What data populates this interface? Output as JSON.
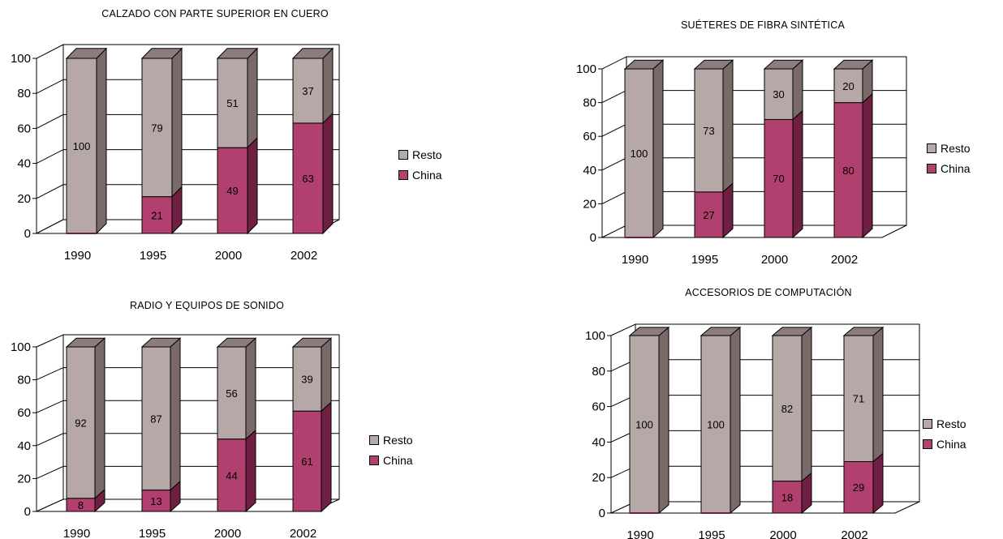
{
  "colors": {
    "resto": "#b7a8a8",
    "resto_side": "#7a6969",
    "resto_top": "#8c7c7c",
    "china": "#b2406f",
    "china_side": "#6e1f42",
    "china_top": "#8a2d55"
  },
  "chart_data": [
    {
      "type": "bar",
      "stacked": true,
      "title": "CALZADO CON PARTE SUPERIOR EN CUERO",
      "categories": [
        "1990",
        "1995",
        "2000",
        "2002"
      ],
      "series": [
        {
          "name": "China",
          "values": [
            0,
            21,
            49,
            63
          ],
          "labels": [
            "",
            "21",
            "49",
            "63"
          ]
        },
        {
          "name": "Resto",
          "values": [
            100,
            79,
            51,
            37
          ],
          "labels": [
            "100",
            "79",
            "51",
            "37"
          ]
        }
      ],
      "yticks": [
        "0",
        "20",
        "40",
        "60",
        "80",
        "100"
      ],
      "ylim": [
        0,
        100
      ],
      "grid": true,
      "legend": [
        "Resto",
        "China"
      ],
      "legend_position": "right"
    },
    {
      "type": "bar",
      "stacked": true,
      "title": "SUÉTERES DE FIBRA SINTÉTICA",
      "categories": [
        "1990",
        "1995",
        "2000",
        "2002"
      ],
      "series": [
        {
          "name": "China",
          "values": [
            0,
            27,
            70,
            80
          ],
          "labels": [
            "",
            "27",
            "70",
            "80"
          ]
        },
        {
          "name": "Resto",
          "values": [
            100,
            73,
            30,
            20
          ],
          "labels": [
            "100",
            "73",
            "30",
            "20"
          ]
        }
      ],
      "yticks": [
        "0",
        "20",
        "40",
        "60",
        "80",
        "100"
      ],
      "ylim": [
        0,
        100
      ],
      "grid": true,
      "legend": [
        "Resto",
        "China"
      ],
      "legend_position": "right"
    },
    {
      "type": "bar",
      "stacked": true,
      "title": "RADIO Y EQUIPOS DE SONIDO",
      "categories": [
        "1990",
        "1995",
        "2000",
        "2002"
      ],
      "series": [
        {
          "name": "China",
          "values": [
            8,
            13,
            44,
            61
          ],
          "labels": [
            "8",
            "13",
            "44",
            "61"
          ]
        },
        {
          "name": "Resto",
          "values": [
            92,
            87,
            56,
            39
          ],
          "labels": [
            "92",
            "87",
            "56",
            "39"
          ]
        }
      ],
      "yticks": [
        "0",
        "20",
        "40",
        "60",
        "80",
        "100"
      ],
      "ylim": [
        0,
        100
      ],
      "grid": true,
      "legend": [
        "Resto",
        "China"
      ],
      "legend_position": "right"
    },
    {
      "type": "bar",
      "stacked": true,
      "title": "ACCESORIOS DE COMPUTACIÓN",
      "categories": [
        "1990",
        "1995",
        "2000",
        "2002"
      ],
      "series": [
        {
          "name": "China",
          "values": [
            0,
            0,
            18,
            29
          ],
          "labels": [
            "",
            "",
            "18",
            "29"
          ]
        },
        {
          "name": "Resto",
          "values": [
            100,
            100,
            82,
            71
          ],
          "labels": [
            "100",
            "100",
            "82",
            "71"
          ]
        }
      ],
      "yticks": [
        "0",
        "20",
        "40",
        "60",
        "80",
        "100"
      ],
      "ylim": [
        0,
        100
      ],
      "grid": true,
      "legend": [
        "Resto",
        "China"
      ],
      "legend_position": "right"
    }
  ]
}
